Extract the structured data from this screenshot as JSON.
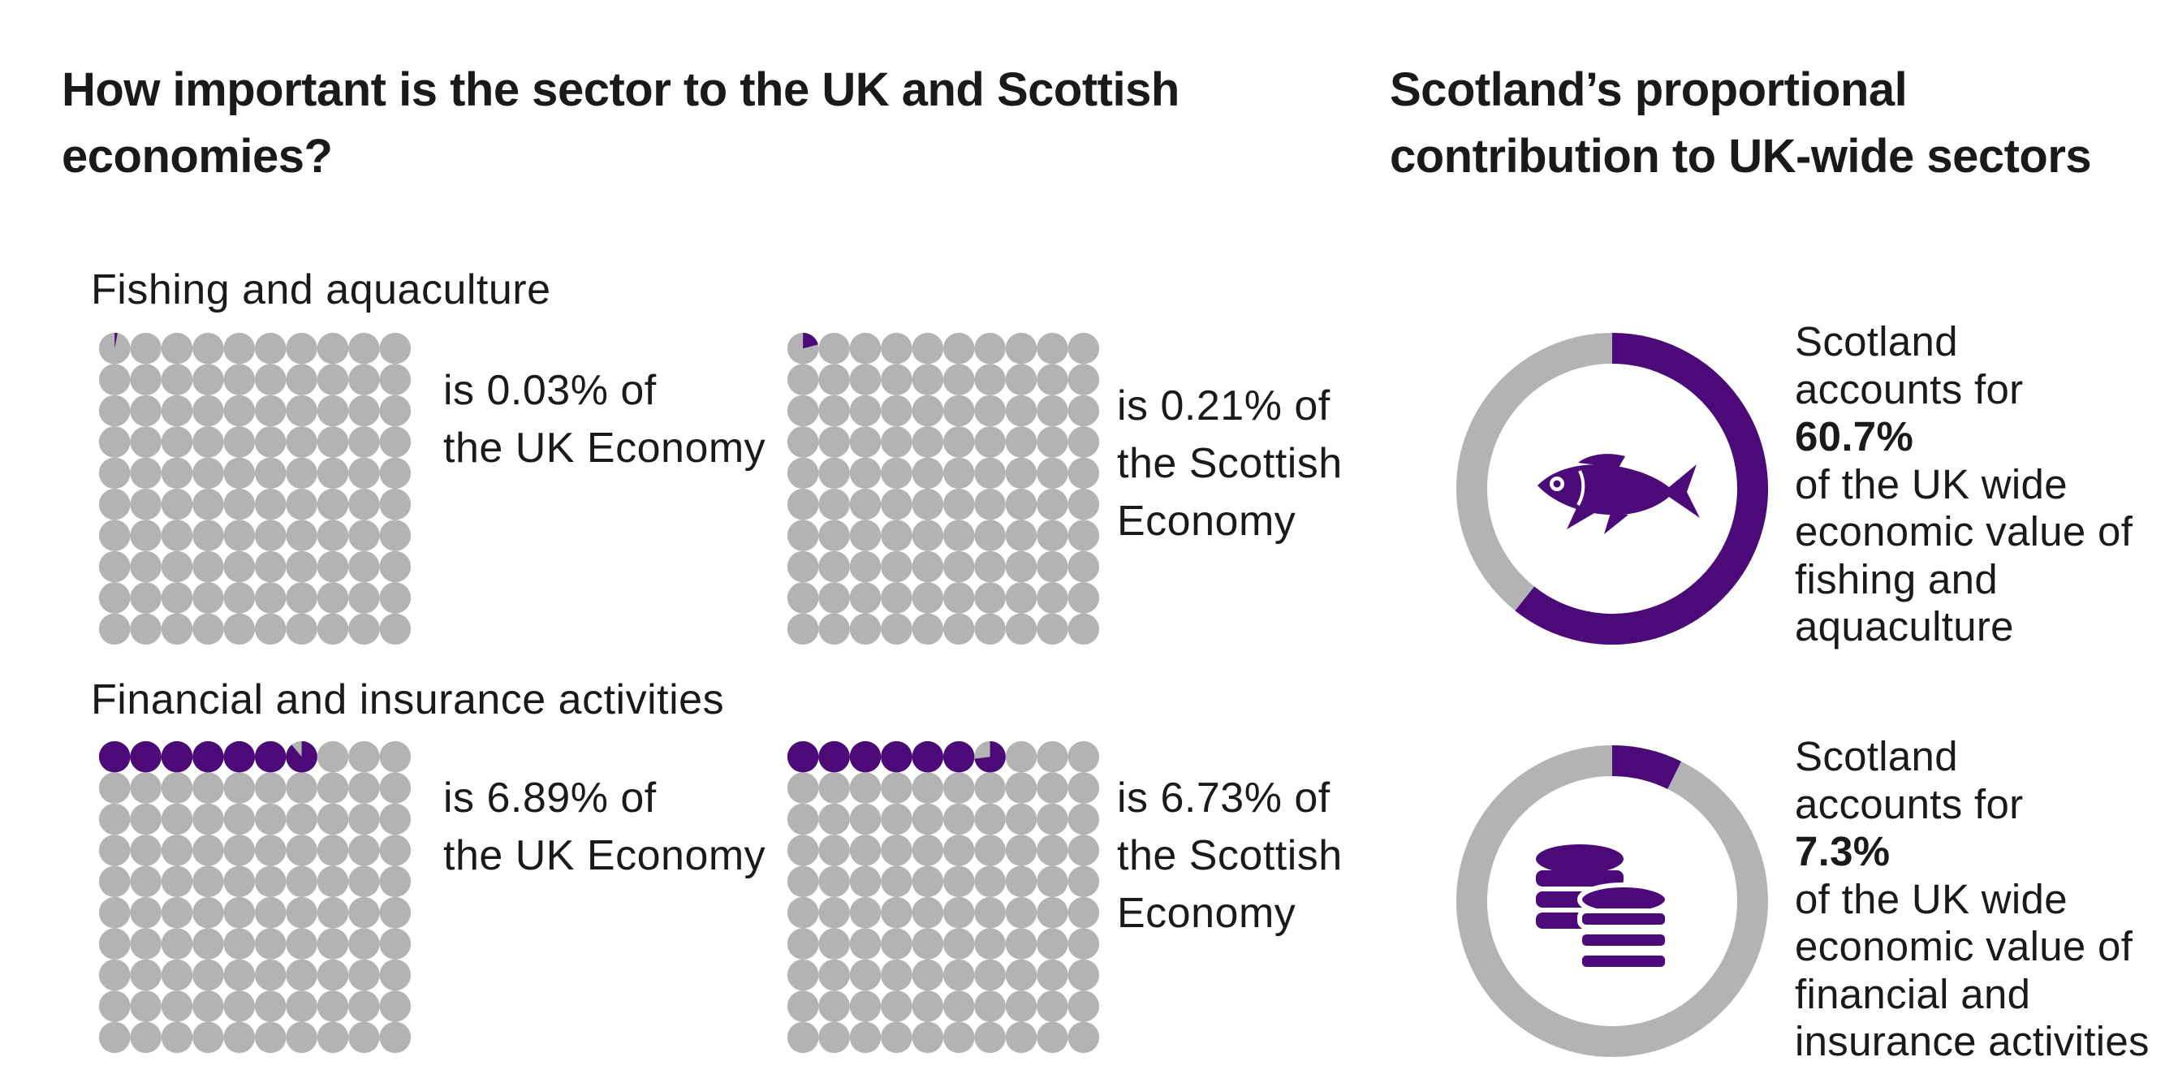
{
  "colors": {
    "accent": "#4b0a77",
    "inactive": "#b3b3b5",
    "text": "#1a1a1a"
  },
  "headings": {
    "left": "How important is the sector to the UK and Scottish economies?",
    "right": "Scotland’s proportional contribution to UK-wide sectors"
  },
  "sectors": [
    {
      "name": "Fishing and aquaculture",
      "uk": {
        "line1": "is 0.03% of",
        "line2": "the UK Economy",
        "line3": ""
      },
      "scot": {
        "line1": "is 0.21% of",
        "line2": "the Scottish",
        "line3": "Economy"
      },
      "callout": {
        "line1": "Scotland",
        "line2": "accounts for",
        "pct": "60.7%",
        "line4": "of the UK wide",
        "line5": "economic value of",
        "line6": "fishing and",
        "line7": "aquaculture"
      },
      "icon": "fish-icon"
    },
    {
      "name": "Financial and insurance activities",
      "uk": {
        "line1": "is 6.89% of",
        "line2": "the UK Economy",
        "line3": ""
      },
      "scot": {
        "line1": "is 6.73% of",
        "line2": "the Scottish",
        "line3": "Economy"
      },
      "callout": {
        "line1": "Scotland",
        "line2": "accounts for",
        "pct": "7.3%",
        "line4": "of the UK wide",
        "line5": "economic value of",
        "line6": "financial and",
        "line7": "insurance activities"
      },
      "icon": "coins-icon"
    }
  ],
  "chart_data": [
    {
      "type": "waffle",
      "title": "Fishing and aquaculture - share of UK Economy",
      "value": 0.03,
      "unit": "%",
      "total": 100
    },
    {
      "type": "waffle",
      "title": "Fishing and aquaculture - share of Scottish Economy",
      "value": 0.21,
      "unit": "%",
      "total": 100
    },
    {
      "type": "waffle",
      "title": "Financial and insurance activities - share of UK Economy",
      "value": 6.89,
      "unit": "%",
      "total": 100
    },
    {
      "type": "waffle",
      "title": "Financial and insurance activities - share of Scottish Economy",
      "value": 6.73,
      "unit": "%",
      "total": 100
    },
    {
      "type": "pie",
      "title": "Scotland share of UK fishing and aquaculture",
      "categories": [
        "Scotland",
        "Rest of UK"
      ],
      "values": [
        60.7,
        39.3
      ]
    },
    {
      "type": "pie",
      "title": "Scotland share of UK financial and insurance activities",
      "categories": [
        "Scotland",
        "Rest of UK"
      ],
      "values": [
        7.3,
        92.7
      ]
    }
  ]
}
